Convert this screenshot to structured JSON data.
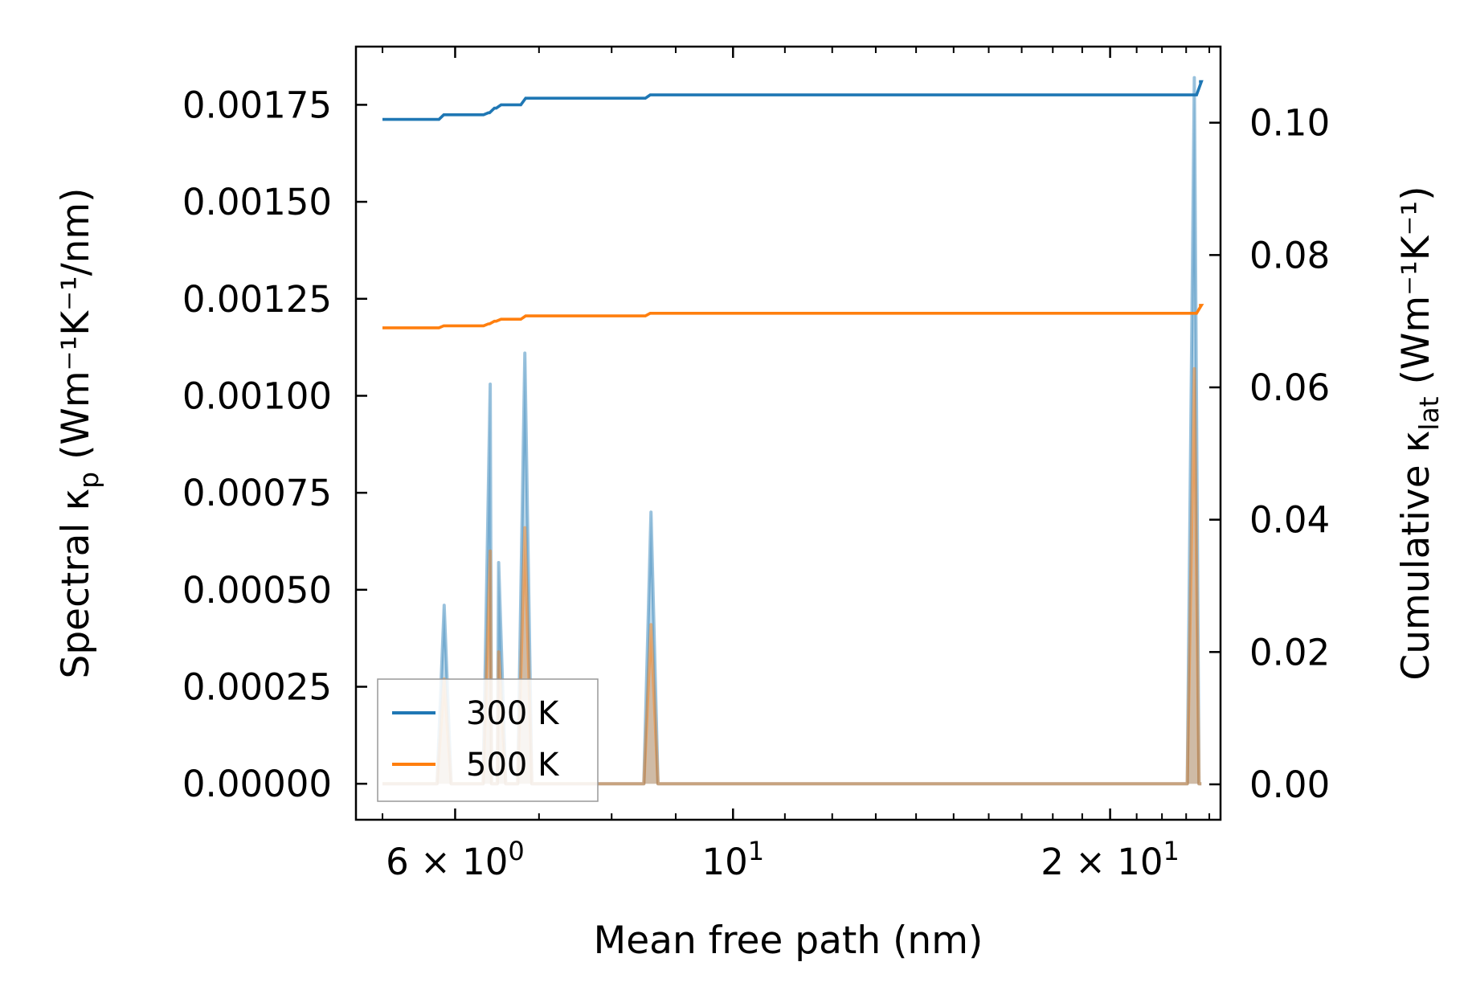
{
  "chart_data": {
    "type": "line",
    "xlabel": "Mean free path (nm)",
    "x_scale": "log",
    "xlim": [
      5.0,
      24.5
    ],
    "x_ticks": [
      {
        "value": 6,
        "label_base": "6 × 10",
        "label_exp": "0"
      },
      {
        "value": 10,
        "label_base": "10",
        "label_exp": "1"
      },
      {
        "value": 20,
        "label_base": "2 × 10",
        "label_exp": "1"
      }
    ],
    "x_minor_ticks": [
      5.25,
      7,
      8,
      9,
      11,
      12,
      13,
      14,
      15,
      16,
      17,
      18,
      19,
      21,
      22,
      23,
      24
    ],
    "left_axis": {
      "label_pre": "Spectral κ",
      "label_sub": "p",
      "label_post": " (Wm⁻¹K⁻¹/nm)",
      "ylim": [
        -9.28e-05,
        0.0019
      ],
      "ticks": [
        0.0,
        0.00025,
        0.0005,
        0.00075,
        0.001,
        0.00125,
        0.0015,
        0.00175
      ],
      "tick_labels": [
        "0.00000",
        "0.00025",
        "0.00050",
        "0.00075",
        "0.00100",
        "0.00125",
        "0.00150",
        "0.00175"
      ]
    },
    "right_axis": {
      "label_pre": "Cumulative κ",
      "label_sub": "lat",
      "label_post": " (Wm⁻¹K⁻¹)",
      "ylim": [
        -0.00535,
        0.1115
      ],
      "ticks": [
        0.0,
        0.02,
        0.04,
        0.06,
        0.08,
        0.1
      ],
      "tick_labels": [
        "0.00",
        "0.02",
        "0.04",
        "0.06",
        "0.08",
        "0.10"
      ]
    },
    "spectral_series": [
      {
        "name": "300 K",
        "color": "#1f77b4",
        "x_start": 5.25,
        "x_end": 23.55,
        "peak_halfwidth": 0.013,
        "peaks": [
          [
            5.88,
            0.00046
          ],
          [
            6.4,
            0.00103
          ],
          [
            6.5,
            0.00057
          ],
          [
            6.82,
            0.00111
          ],
          [
            8.6,
            0.0007
          ],
          [
            23.35,
            0.00182
          ]
        ]
      },
      {
        "name": "500 K",
        "color": "#ff7f0e",
        "x_start": 5.25,
        "x_end": 23.55,
        "peak_halfwidth": 0.013,
        "peaks": [
          [
            5.88,
            0.00027
          ],
          [
            6.4,
            0.0006
          ],
          [
            6.5,
            0.00034
          ],
          [
            6.82,
            0.00066
          ],
          [
            8.6,
            0.00041
          ],
          [
            23.35,
            0.00107
          ]
        ]
      }
    ],
    "cumulative_series": [
      {
        "name": "300 K",
        "color": "#1f77b4",
        "steps": [
          [
            5.25,
            0.1005
          ],
          [
            5.85,
            0.1012
          ],
          [
            6.35,
            0.1015
          ],
          [
            6.42,
            0.1022
          ],
          [
            6.5,
            0.1027
          ],
          [
            6.8,
            0.1037
          ],
          [
            8.55,
            0.1042
          ],
          [
            23.1,
            0.1042
          ],
          [
            23.55,
            0.1062
          ]
        ]
      },
      {
        "name": "500 K",
        "color": "#ff7f0e",
        "steps": [
          [
            5.25,
            0.069
          ],
          [
            5.85,
            0.0693
          ],
          [
            6.35,
            0.0696
          ],
          [
            6.42,
            0.07
          ],
          [
            6.5,
            0.0703
          ],
          [
            6.8,
            0.0708
          ],
          [
            8.55,
            0.0712
          ],
          [
            23.1,
            0.0712
          ],
          [
            23.55,
            0.0724
          ]
        ]
      }
    ],
    "legend": {
      "position": "lower-left",
      "entries": [
        {
          "label": "300 K",
          "color": "#1f77b4"
        },
        {
          "label": "500 K",
          "color": "#ff7f0e"
        }
      ]
    }
  }
}
